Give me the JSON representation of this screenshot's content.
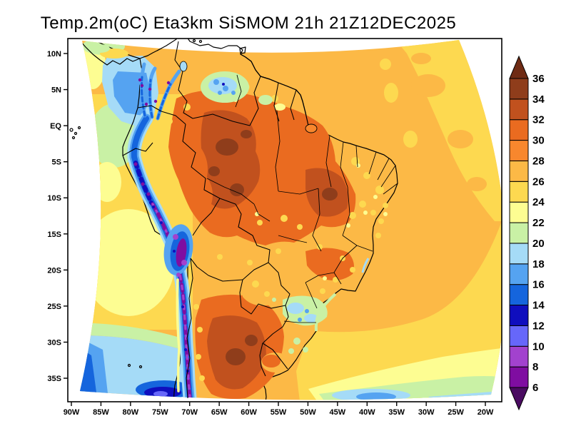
{
  "title": "Temp.2m(oC) Eta3km SiSMOM 21h 21Z12DEC2025",
  "chart_data": {
    "type": "heatmap",
    "title": "Temp.2m(oC) Eta3km SiSMOM 21h 21Z12DEC2025",
    "variable": "Temp.2m",
    "units": "oC",
    "model": "Eta3km",
    "system": "SiSMOM",
    "forecast_hour": "21h",
    "valid_time": "21Z12DEC2025",
    "region": "South America",
    "x_axis": {
      "ticks": [
        "90W",
        "85W",
        "80W",
        "75W",
        "70W",
        "65W",
        "60W",
        "55W",
        "50W",
        "45W",
        "40W",
        "35W",
        "30W",
        "25W",
        "20W"
      ]
    },
    "y_axis": {
      "ticks": [
        "10N",
        "5N",
        "EQ",
        "5S",
        "10S",
        "15S",
        "20S",
        "25S",
        "30S",
        "35S"
      ]
    },
    "colorbar": {
      "levels": [
        6,
        8,
        10,
        12,
        14,
        16,
        18,
        20,
        22,
        24,
        26,
        28,
        30,
        32,
        34,
        36
      ],
      "band_colors": [
        "#4a0b61",
        "#7f0da1",
        "#a242ce",
        "#6667fa",
        "#0f0ebe",
        "#1565dd",
        "#55a3f1",
        "#a5dbf7",
        "#c9f1a5",
        "#fdfd92",
        "#fdd950",
        "#fcb946",
        "#f8872d",
        "#ea6b20",
        "#c1511e",
        "#8f3d1b",
        "#6f2b14"
      ]
    },
    "features": [
      "Andes cordillera: 6-14 oC cold stripe (purple/blue) from Colombia to southern Chile",
      "Amazon basin and central Brazil: 30-34 oC",
      "Central-northern Argentina: 32-36 oC maximum",
      "Tropical Atlantic and Caribbean: 26-28 oC",
      "Far northeastern Atlantic: 24-26 oC",
      "Panama Bight (eastern Pacific): 16-20 oC",
      "Peru coastal Pacific: 22-26 oC",
      "Southwestern Pacific corner and far South Atlantic bottom: 14-20 oC",
      "Southern Brazil valleys: 18-22 oC pockets"
    ]
  }
}
